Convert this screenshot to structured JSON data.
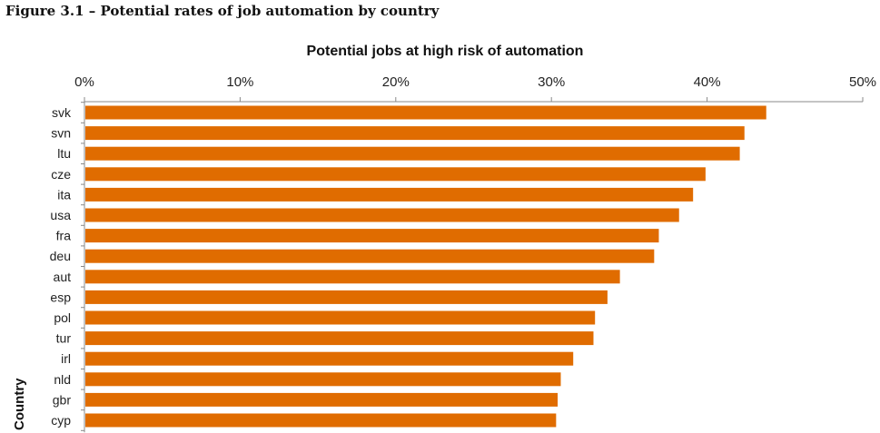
{
  "figure": {
    "caption": "Figure 3.1 – Potential rates of job automation by country"
  },
  "chart_data": {
    "type": "bar",
    "orientation": "horizontal",
    "title": "Potential jobs at high risk of automation",
    "xlabel": "",
    "ylabel": "Country",
    "xlim": [
      0,
      50
    ],
    "x_axis_position": "top",
    "ticks": [
      "0%",
      "10%",
      "20%",
      "30%",
      "40%",
      "50%"
    ],
    "tick_values": [
      0,
      10,
      20,
      30,
      40,
      50
    ],
    "grid": false,
    "legend": "none",
    "bar_color": "#E06C00",
    "categories": [
      "svk",
      "svn",
      "ltu",
      "cze",
      "ita",
      "usa",
      "fra",
      "deu",
      "aut",
      "esp",
      "pol",
      "tur",
      "irl",
      "nld",
      "gbr",
      "cyp"
    ],
    "values": [
      43.8,
      42.4,
      42.1,
      39.9,
      39.1,
      38.2,
      36.9,
      36.6,
      34.4,
      33.6,
      32.8,
      32.7,
      31.4,
      30.6,
      30.4,
      30.3
    ]
  }
}
